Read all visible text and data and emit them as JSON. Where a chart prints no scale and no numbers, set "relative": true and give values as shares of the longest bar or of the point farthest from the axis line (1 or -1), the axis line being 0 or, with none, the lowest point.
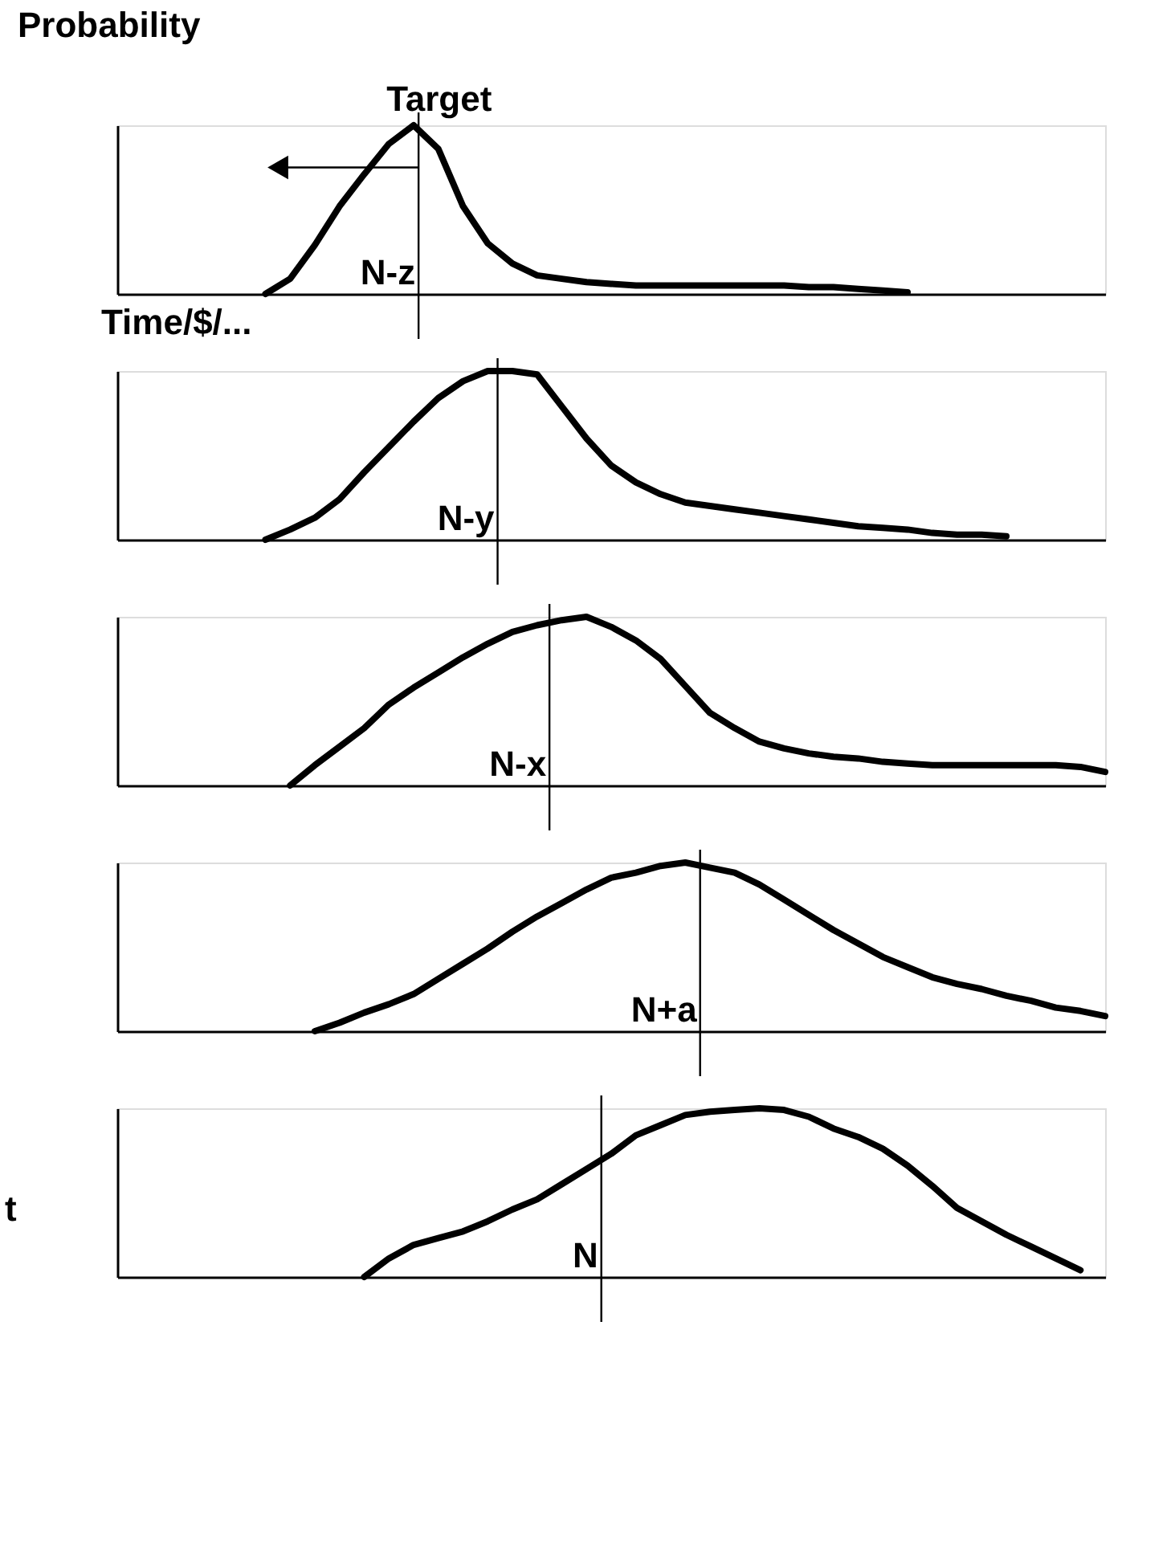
{
  "chart_data": [
    {
      "type": "line",
      "relative": true,
      "ylabel": "Probability",
      "xlabel": "Time/$/...",
      "line_style": "solid",
      "categories": [
        null,
        null,
        null,
        null,
        null,
        null,
        null,
        null,
        null,
        null,
        null,
        null,
        null,
        null,
        null,
        null,
        null,
        null,
        null,
        null,
        null,
        null,
        null,
        null,
        null,
        null,
        null,
        null,
        null,
        null,
        null,
        null,
        null,
        null,
        null,
        null,
        null,
        null,
        null,
        null,
        null
      ],
      "series": [
        {
          "color": "#000000",
          "values": [
            null,
            null,
            null,
            null,
            null,
            null,
            0,
            0.09,
            0.29,
            0.52,
            0.71,
            0.89,
            1,
            0.86,
            0.52,
            0.3,
            0.18,
            0.11,
            0.09,
            0.07,
            0.06,
            0.05,
            0.05,
            0.05,
            0.05,
            0.05,
            0.05,
            0.05,
            0.04,
            0.04,
            0.03,
            0.02,
            0.01,
            null,
            null,
            null,
            null,
            null,
            null,
            null,
            null
          ]
        }
      ],
      "annotations": [
        "Target",
        "N-z"
      ]
    },
    {
      "type": "line",
      "relative": true,
      "line_style": "solid",
      "categories": [
        null,
        null,
        null,
        null,
        null,
        null,
        null,
        null,
        null,
        null,
        null,
        null,
        null,
        null,
        null,
        null,
        null,
        null,
        null,
        null,
        null,
        null,
        null,
        null,
        null,
        null,
        null,
        null,
        null,
        null,
        null,
        null,
        null,
        null,
        null,
        null,
        null,
        null,
        null,
        null,
        null
      ],
      "series": [
        {
          "color": "#000000",
          "values": [
            null,
            null,
            null,
            null,
            null,
            null,
            0,
            0.06,
            0.13,
            0.24,
            0.4,
            0.55,
            0.7,
            0.84,
            0.94,
            1,
            1,
            0.98,
            0.79,
            0.6,
            0.44,
            0.34,
            0.27,
            0.22,
            0.2,
            0.18,
            0.16,
            0.14,
            0.12,
            0.1,
            0.08,
            0.07,
            0.06,
            0.04,
            0.03,
            0.03,
            0.02,
            null,
            null,
            null,
            null
          ]
        }
      ],
      "annotations": [
        "N-y"
      ]
    },
    {
      "type": "line",
      "relative": true,
      "line_style": "solid",
      "categories": [
        null,
        null,
        null,
        null,
        null,
        null,
        null,
        null,
        null,
        null,
        null,
        null,
        null,
        null,
        null,
        null,
        null,
        null,
        null,
        null,
        null,
        null,
        null,
        null,
        null,
        null,
        null,
        null,
        null,
        null,
        null,
        null,
        null,
        null,
        null,
        null,
        null,
        null,
        null,
        null,
        null
      ],
      "series": [
        {
          "color": "#000000",
          "values": [
            null,
            null,
            null,
            null,
            null,
            null,
            null,
            0,
            0.12,
            0.23,
            0.34,
            0.48,
            0.58,
            0.67,
            0.76,
            0.84,
            0.91,
            0.95,
            0.98,
            1,
            0.94,
            0.86,
            0.75,
            0.59,
            0.43,
            0.34,
            0.26,
            0.22,
            0.19,
            0.17,
            0.16,
            0.14,
            0.13,
            0.12,
            0.12,
            0.12,
            0.12,
            0.12,
            0.12,
            0.11,
            0.08
          ]
        }
      ],
      "annotations": [
        "N-x"
      ]
    },
    {
      "type": "line",
      "relative": true,
      "line_style": "solid",
      "categories": [
        null,
        null,
        null,
        null,
        null,
        null,
        null,
        null,
        null,
        null,
        null,
        null,
        null,
        null,
        null,
        null,
        null,
        null,
        null,
        null,
        null,
        null,
        null,
        null,
        null,
        null,
        null,
        null,
        null,
        null,
        null,
        null,
        null,
        null,
        null,
        null,
        null,
        null,
        null,
        null,
        null
      ],
      "series": [
        {
          "color": "#000000",
          "values": [
            null,
            null,
            null,
            null,
            null,
            null,
            null,
            null,
            0,
            0.05,
            0.11,
            0.16,
            0.22,
            0.31,
            0.4,
            0.49,
            0.59,
            0.68,
            0.76,
            0.84,
            0.91,
            0.94,
            0.98,
            1,
            0.97,
            0.94,
            0.87,
            0.78,
            0.69,
            0.6,
            0.52,
            0.44,
            0.38,
            0.32,
            0.28,
            0.25,
            0.21,
            0.18,
            0.14,
            0.12,
            0.09
          ]
        }
      ],
      "annotations": [
        "N+a"
      ]
    },
    {
      "type": "line",
      "relative": true,
      "line_style": "solid",
      "categories": [
        null,
        null,
        null,
        null,
        null,
        null,
        null,
        null,
        null,
        null,
        null,
        null,
        null,
        null,
        null,
        null,
        null,
        null,
        null,
        null,
        null,
        null,
        null,
        null,
        null,
        null,
        null,
        null,
        null,
        null,
        null,
        null,
        null,
        null,
        null,
        null,
        null,
        null,
        null,
        null,
        null
      ],
      "series": [
        {
          "color": "#000000",
          "values": [
            null,
            null,
            null,
            null,
            null,
            null,
            null,
            null,
            null,
            null,
            0,
            0.11,
            0.19,
            0.23,
            0.27,
            0.33,
            0.4,
            0.46,
            0.55,
            0.64,
            0.73,
            0.84,
            0.9,
            0.96,
            0.98,
            0.99,
            1,
            0.99,
            0.95,
            0.88,
            0.83,
            0.76,
            0.66,
            0.54,
            0.41,
            0.33,
            0.25,
            0.18,
            0.11,
            0.04,
            null
          ]
        }
      ],
      "annotations": [
        "N",
        "t"
      ]
    }
  ]
}
